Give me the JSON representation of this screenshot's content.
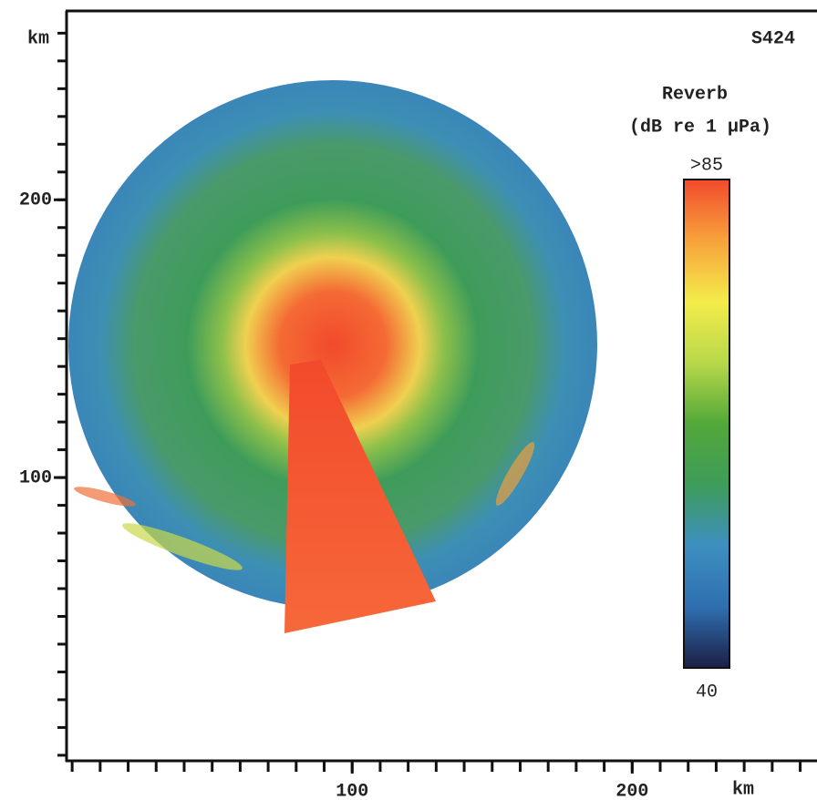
{
  "chart_data": {
    "type": "image-map",
    "annotation": "S424",
    "xlabel": "km",
    "ylabel": "km",
    "xlim": [
      -2,
      266
    ],
    "ylim": [
      -2,
      268
    ],
    "xticks": [
      100,
      200
    ],
    "yticks": [
      100,
      200
    ],
    "minor_tick_step": 10,
    "colorbar": {
      "title": "Reverb",
      "units": "(dB re 1 µPa)",
      "lim": [
        40,
        85
      ],
      "ticks": [
        {
          "value": 85,
          "label": ">85"
        },
        40
      ],
      "colormap": [
        "#1c1f45",
        "#2f6fb0",
        "#3d8fc0",
        "#3e9c5a",
        "#52a83a",
        "#b8d84a",
        "#f4ec4a",
        "#f7a23c",
        "#f24a2c"
      ]
    }
  }
}
